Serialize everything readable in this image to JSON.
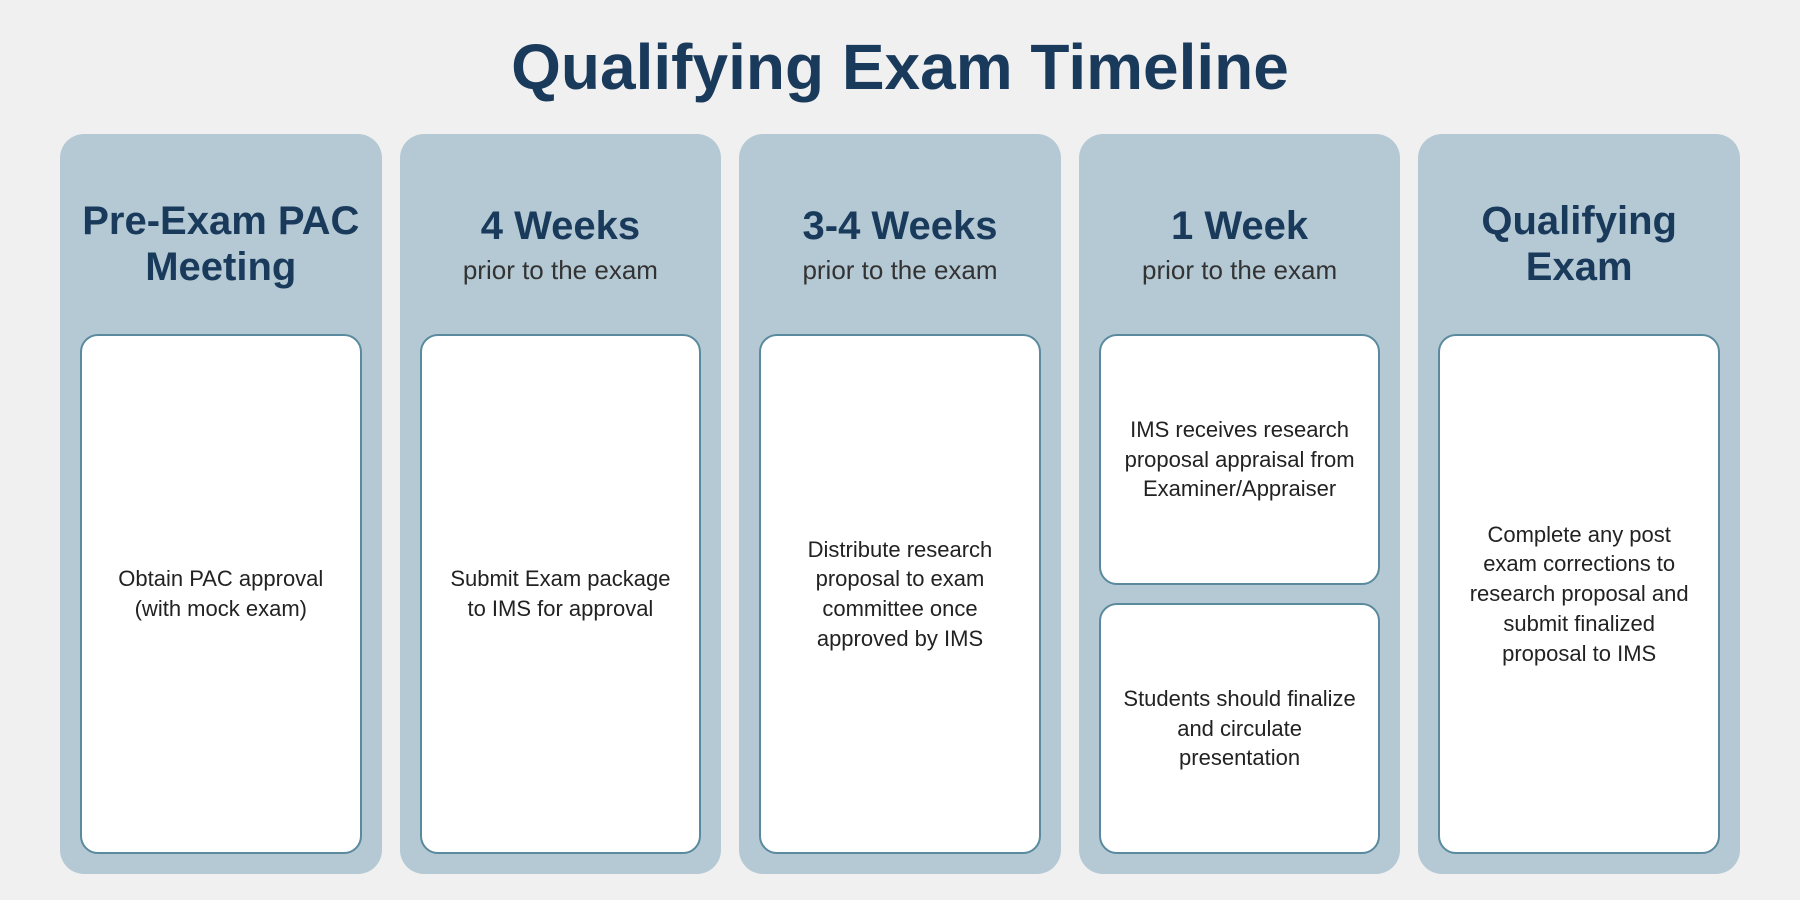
{
  "title": "Qualifying Exam Timeline",
  "styling": {
    "page_background": "#f0f0f0",
    "title_color": "#1a3a5c",
    "title_fontsize": 64,
    "column_background": "#b4c9d4",
    "column_border_radius": 24,
    "header_title_color": "#1a3a5c",
    "header_title_fontsize": 40,
    "header_subtitle_color": "#333333",
    "header_subtitle_fontsize": 26,
    "box_background": "#ffffff",
    "box_border_color": "#5a8a9e",
    "box_border_width": 2,
    "box_border_radius": 18,
    "box_text_color": "#222222",
    "box_text_fontsize": 22,
    "column_gap": 18,
    "column_count": 5,
    "column_height": 740
  },
  "columns": [
    {
      "header_title": "Pre-Exam PAC Meeting",
      "header_subtitle": "",
      "boxes": [
        "Obtain PAC approval (with mock exam)"
      ]
    },
    {
      "header_title": "4 Weeks",
      "header_subtitle": "prior to the exam",
      "boxes": [
        "Submit Exam package to IMS for approval"
      ]
    },
    {
      "header_title": "3-4 Weeks",
      "header_subtitle": "prior to the exam",
      "boxes": [
        "Distribute research proposal to exam committee once approved by IMS"
      ]
    },
    {
      "header_title": "1 Week",
      "header_subtitle": "prior to the exam",
      "boxes": [
        "IMS receives research proposal appraisal from Examiner/Appraiser",
        "Students should finalize and circulate presentation"
      ]
    },
    {
      "header_title": "Qualifying Exam",
      "header_subtitle": "",
      "boxes": [
        "Complete any post exam corrections to research proposal and submit finalized proposal to IMS"
      ]
    }
  ]
}
